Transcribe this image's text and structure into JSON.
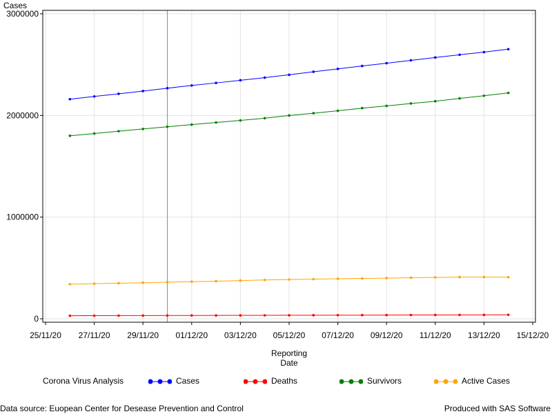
{
  "chart_data": {
    "type": "line",
    "title": "",
    "ylabel": "Cases",
    "xlabel_lines": [
      "Reporting",
      "Date"
    ],
    "ylim": [
      0,
      3000000
    ],
    "yticks": [
      0,
      1000000,
      2000000,
      3000000
    ],
    "ytick_labels": [
      "0",
      "1000000",
      "2000000",
      "3000000"
    ],
    "xlim": [
      "2020-11-25",
      "2020-12-15"
    ],
    "xticks": [
      "2020-11-25",
      "2020-11-27",
      "2020-11-29",
      "2020-12-01",
      "2020-12-03",
      "2020-12-05",
      "2020-12-07",
      "2020-12-09",
      "2020-12-11",
      "2020-12-13",
      "2020-12-15"
    ],
    "xtick_labels": [
      "25/11/20",
      "27/11/20",
      "29/11/20",
      "01/12/20",
      "03/12/20",
      "05/12/20",
      "07/12/20",
      "09/12/20",
      "11/12/20",
      "13/12/20",
      "15/12/20"
    ],
    "reference_line_x": "2020-11-30",
    "grid": true,
    "legend_position": "bottom",
    "x": [
      "2020-11-26",
      "2020-11-27",
      "2020-11-28",
      "2020-11-29",
      "2020-11-30",
      "2020-12-01",
      "2020-12-02",
      "2020-12-03",
      "2020-12-04",
      "2020-12-05",
      "2020-12-06",
      "2020-12-07",
      "2020-12-08",
      "2020-12-09",
      "2020-12-10",
      "2020-12-11",
      "2020-12-12",
      "2020-12-13",
      "2020-12-14"
    ],
    "series": [
      {
        "name": "Cases",
        "color": "#0000ff",
        "values": [
          2160000,
          2187000,
          2213000,
          2240000,
          2268000,
          2295000,
          2320000,
          2346000,
          2372000,
          2400000,
          2430000,
          2458000,
          2487000,
          2514000,
          2542000,
          2570000,
          2597000,
          2623000,
          2652000
        ]
      },
      {
        "name": "Deaths",
        "color": "#ff0000",
        "values": [
          30000,
          30500,
          31000,
          31500,
          32000,
          32500,
          33000,
          33500,
          34000,
          34500,
          35000,
          35500,
          36000,
          36500,
          37000,
          37500,
          38000,
          38500,
          39000
        ]
      },
      {
        "name": "Survivors",
        "color": "#008000",
        "values": [
          1800000,
          1822000,
          1845000,
          1867000,
          1889000,
          1910000,
          1931000,
          1951000,
          1973000,
          2000000,
          2022000,
          2046000,
          2072000,
          2094000,
          2118000,
          2140000,
          2168000,
          2194000,
          2222000
        ]
      },
      {
        "name": "Active Cases",
        "color": "#ffa500",
        "values": [
          340000,
          345000,
          350000,
          355000,
          360000,
          365000,
          370000,
          376000,
          382000,
          386000,
          390000,
          394000,
          397000,
          400000,
          404000,
          407000,
          410000,
          410000,
          409000
        ]
      }
    ]
  },
  "legend": {
    "title": "Corona Virus Analysis",
    "items": [
      {
        "label": "Cases",
        "color": "#0000ff"
      },
      {
        "label": "Deaths",
        "color": "#ff0000"
      },
      {
        "label": "Survivors",
        "color": "#008000"
      },
      {
        "label": "Active Cases",
        "color": "#ffa500"
      }
    ]
  },
  "footnotes": {
    "left": "Data source: Euopean Center for Desease Prevention and Control",
    "right": "Produced with SAS Software"
  }
}
